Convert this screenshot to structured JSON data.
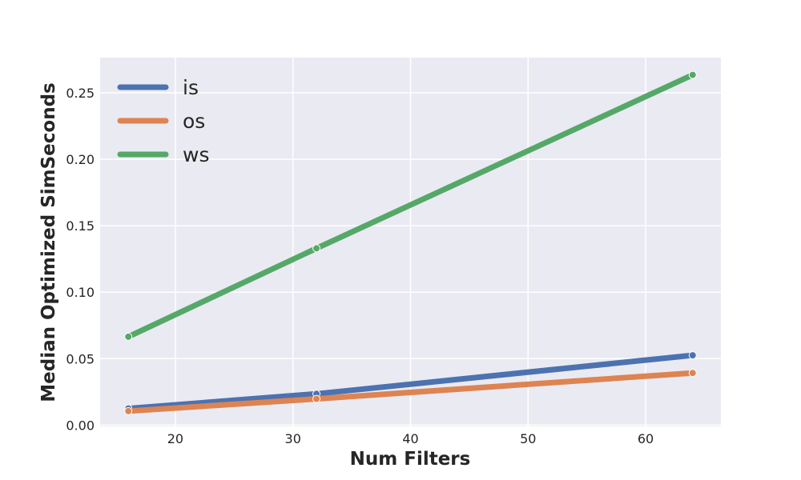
{
  "chart_data": {
    "type": "line",
    "title": "",
    "xlabel": "Num Filters",
    "ylabel": "Median Optimized SimSeconds",
    "x": [
      16,
      32,
      64
    ],
    "series": [
      {
        "name": "is",
        "color": "#4c72b0",
        "values": [
          0.0125,
          0.0235,
          0.0525
        ]
      },
      {
        "name": "os",
        "color": "#dd8452",
        "values": [
          0.0105,
          0.0197,
          0.0392
        ]
      },
      {
        "name": "ws",
        "color": "#55a868",
        "values": [
          0.0665,
          0.133,
          0.2635
        ]
      }
    ],
    "xlim": [
      13.6,
      66.4
    ],
    "ylim": [
      -0.001,
      0.2765
    ],
    "xticks": [
      "20",
      "30",
      "40",
      "50",
      "60"
    ],
    "yticks": [
      "0.00",
      "0.05",
      "0.10",
      "0.15",
      "0.20",
      "0.25"
    ],
    "grid": true,
    "legend_position": "top-left",
    "background_color": "#eaeaf2",
    "grid_color": "#ffffff"
  }
}
